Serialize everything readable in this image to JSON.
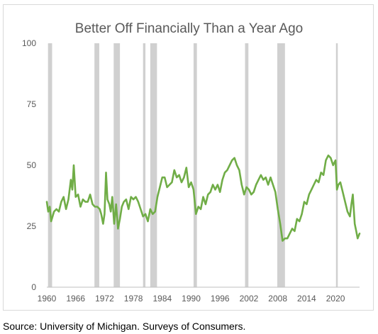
{
  "chart_data": {
    "type": "line",
    "title": "Better Off Financially Than a Year Ago",
    "xlabel": "",
    "ylabel": "",
    "xlim": [
      1960,
      2025
    ],
    "ylim": [
      0,
      100
    ],
    "y_ticks": [
      0,
      25,
      50,
      75,
      100
    ],
    "x_ticks": [
      1960,
      1966,
      1972,
      1978,
      1984,
      1990,
      1996,
      2002,
      2008,
      2014,
      2020
    ],
    "grid": false,
    "legend": "none",
    "line_color": "#70ad47",
    "band_color": "#d0d0d0",
    "recession_bands": [
      [
        1960.25,
        1961.1
      ],
      [
        1969.9,
        1970.9
      ],
      [
        1973.9,
        1975.2
      ],
      [
        1980.0,
        1980.5
      ],
      [
        1981.5,
        1982.9
      ],
      [
        1990.5,
        1991.2
      ],
      [
        2001.2,
        2001.9
      ],
      [
        2007.9,
        2009.5
      ],
      [
        2020.1,
        2020.4
      ]
    ],
    "series": [
      {
        "x": [
          1960.0,
          1960.3,
          1960.6,
          1960.9,
          1961.5,
          1962.0,
          1962.5,
          1963.0,
          1963.5,
          1964.0,
          1964.5,
          1965.0,
          1965.3,
          1965.6,
          1966.0,
          1966.5,
          1967.0,
          1967.5,
          1968.0,
          1968.5,
          1969.0,
          1969.5,
          1970.0,
          1970.5,
          1971.0,
          1971.3,
          1971.7,
          1972.0,
          1972.3,
          1972.6,
          1973.0,
          1973.3,
          1973.6,
          1974.0,
          1974.4,
          1974.8,
          1975.2,
          1975.6,
          1976.0,
          1976.5,
          1977.0,
          1977.5,
          1978.0,
          1978.5,
          1979.0,
          1979.5,
          1980.0,
          1980.5,
          1981.0,
          1981.5,
          1982.0,
          1982.5,
          1983.0,
          1983.5,
          1984.0,
          1984.5,
          1985.0,
          1985.5,
          1986.0,
          1986.5,
          1987.0,
          1987.5,
          1988.0,
          1988.5,
          1989.0,
          1989.5,
          1990.0,
          1990.5,
          1991.0,
          1991.5,
          1992.0,
          1992.5,
          1993.0,
          1993.5,
          1994.0,
          1994.5,
          1995.0,
          1995.5,
          1996.0,
          1996.5,
          1997.0,
          1997.5,
          1998.0,
          1998.5,
          1999.0,
          1999.5,
          2000.0,
          2000.5,
          2001.0,
          2001.5,
          2002.0,
          2002.5,
          2003.0,
          2003.5,
          2004.0,
          2004.5,
          2005.0,
          2005.5,
          2006.0,
          2006.5,
          2007.0,
          2007.5,
          2008.0,
          2008.5,
          2009.0,
          2009.5,
          2010.0,
          2010.5,
          2011.0,
          2011.5,
          2012.0,
          2012.5,
          2013.0,
          2013.5,
          2014.0,
          2014.5,
          2015.0,
          2015.5,
          2016.0,
          2016.5,
          2017.0,
          2017.5,
          2018.0,
          2018.5,
          2019.0,
          2019.5,
          2020.0,
          2020.3,
          2020.6,
          2021.0,
          2021.5,
          2022.0,
          2022.5,
          2023.0,
          2023.3,
          2023.6,
          2024.0,
          2024.3,
          2024.6,
          2025.0
        ],
        "values": [
          35,
          31,
          33,
          27,
          31,
          32,
          31,
          35,
          37,
          32,
          36,
          44,
          40,
          50,
          37,
          38,
          33,
          36,
          35,
          35,
          38,
          34,
          33,
          33,
          32,
          30,
          26,
          30,
          47,
          36,
          34,
          31,
          37,
          26,
          34,
          24,
          28,
          33,
          35,
          36,
          32,
          37,
          36,
          37,
          35,
          32,
          29,
          30,
          27,
          32,
          30,
          31,
          37,
          41,
          45,
          45,
          41,
          42,
          43,
          48,
          45,
          46,
          43,
          45,
          49,
          41,
          43,
          40,
          30,
          33,
          32,
          37,
          34,
          38,
          39,
          42,
          40,
          42,
          39,
          44,
          47,
          48,
          50,
          52,
          53,
          50,
          48,
          42,
          38,
          41,
          40,
          38,
          39,
          42,
          44,
          46,
          44,
          45,
          42,
          45,
          42,
          39,
          32,
          26,
          19,
          20,
          20,
          22,
          24,
          23,
          28,
          27,
          30,
          35,
          34,
          38,
          40,
          42,
          44,
          43,
          47,
          46,
          52,
          54,
          53,
          50,
          52,
          40,
          42,
          43,
          39,
          35,
          31,
          29,
          34,
          38,
          26,
          23,
          20,
          22
        ]
      }
    ]
  },
  "source_note": "Source: University of Michigan. Surveys of Consumers."
}
